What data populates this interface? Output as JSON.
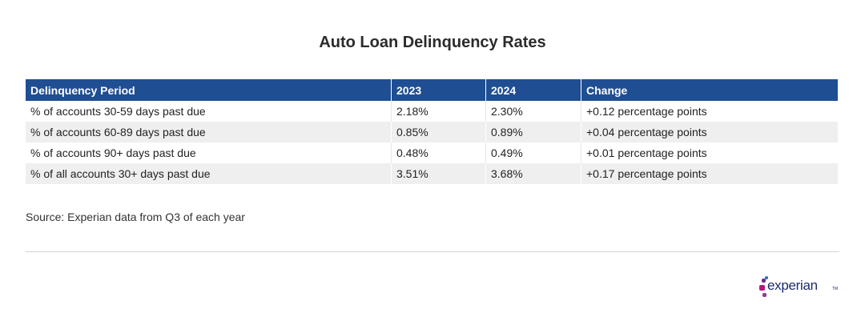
{
  "title": "Auto Loan Delinquency Rates",
  "table": {
    "headers": [
      "Delinquency Period",
      "2023",
      "2024",
      "Change"
    ],
    "rows": [
      [
        "% of accounts 30-59 days past due",
        "2.18%",
        "2.30%",
        "+0.12 percentage points"
      ],
      [
        "% of accounts 60-89 days past due",
        "0.85%",
        "0.89%",
        "+0.04 percentage points"
      ],
      [
        "% of accounts 90+ days past due",
        "0.48%",
        "0.49%",
        "+0.01 percentage points"
      ],
      [
        "% of all accounts 30+ days past due",
        "3.51%",
        "3.68%",
        "+0.17 percentage points"
      ]
    ]
  },
  "source": "Source: Experian data from Q3 of each year",
  "logo": {
    "name": "experian",
    "tm": "TM",
    "colors": {
      "navy": "#1d2b6b",
      "purple": "#6b2c91",
      "magenta": "#b5177e",
      "blue": "#2a6ebb",
      "violet": "#8e3a9d"
    }
  },
  "colors": {
    "header_bg": "#1f4e93",
    "stripe_bg": "#efefef"
  }
}
